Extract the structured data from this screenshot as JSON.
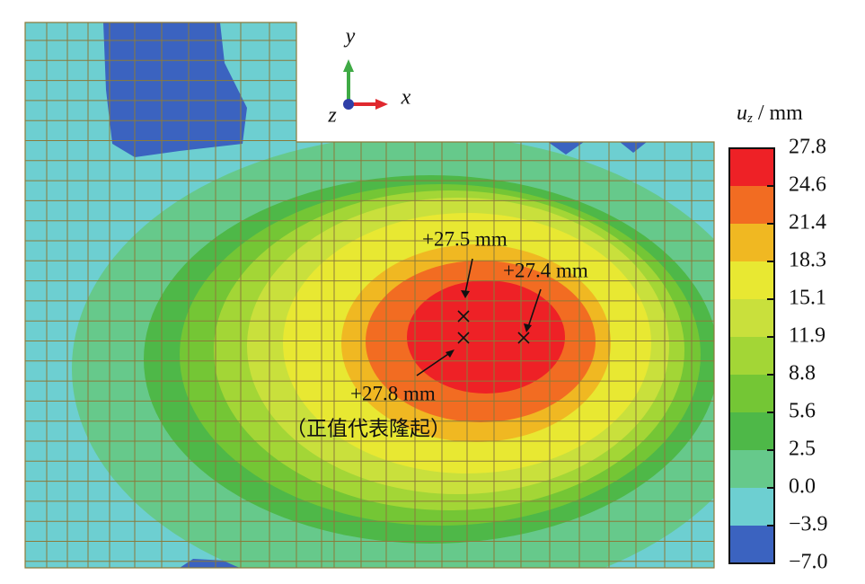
{
  "chart_data": {
    "type": "contour",
    "colorbar": {
      "label_var": "u",
      "label_sub": "z",
      "label_unit": " / mm",
      "ticks": [
        27.8,
        24.6,
        21.4,
        18.3,
        15.1,
        11.9,
        8.8,
        5.6,
        2.5,
        {
          "value": 0,
          "label": "0.0"
        },
        {
          "value": -3.9,
          "label": "−3.9"
        },
        {
          "value": -7,
          "label": "−7.0"
        }
      ],
      "colors": [
        "#ee2126",
        "#f26c22",
        "#f0b822",
        "#e8e832",
        "#c9e03c",
        "#a3d636",
        "#74c635",
        "#4eb848",
        "#66c98b",
        "#6dcfd1",
        "#3b63c0"
      ]
    },
    "axes_labels": {
      "x": "x",
      "y": "y",
      "z": "z"
    },
    "annotations": [
      "+27.5 mm",
      "+27.4 mm",
      "+27.8 mm",
      "（正值代表隆起）"
    ]
  }
}
